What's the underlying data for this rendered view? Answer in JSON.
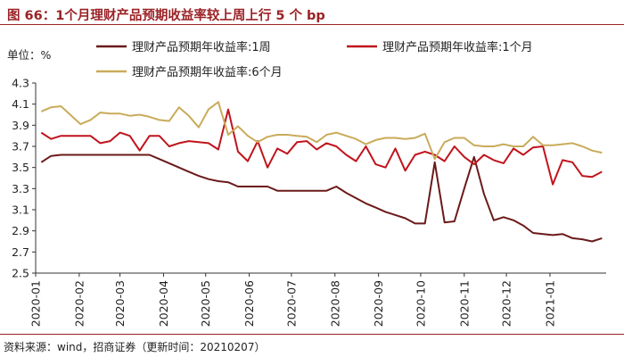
{
  "title": "图 66：1个月理财产品预期收益率较上周上行 5 个 bp",
  "source": "资料来源：wind，招商证券（更新时间：20210207）",
  "chart_data": {
    "type": "line",
    "unit_label": "单位：%",
    "ylim": [
      2.5,
      4.3
    ],
    "yticks": [
      "4.3",
      "4.1",
      "3.9",
      "3.7",
      "3.5",
      "3.3",
      "3.1",
      "2.9",
      "2.7",
      "2.5"
    ],
    "xticks": [
      "2020-01",
      "2020-02",
      "2020-03",
      "2020-04",
      "2020-05",
      "2020-06",
      "2020-07",
      "2020-08",
      "2020-09",
      "2020-10",
      "2020-11",
      "2020-12",
      "2021-01"
    ],
    "grid": false,
    "legend_position": "top",
    "x_dates": [
      "2020-01-05",
      "2020-01-12",
      "2020-01-19",
      "2020-02-02",
      "2020-02-09",
      "2020-02-16",
      "2020-02-23",
      "2020-03-01",
      "2020-03-08",
      "2020-03-15",
      "2020-03-22",
      "2020-03-29",
      "2020-04-05",
      "2020-04-12",
      "2020-04-19",
      "2020-04-26",
      "2020-05-03",
      "2020-05-10",
      "2020-05-17",
      "2020-05-24",
      "2020-05-31",
      "2020-06-07",
      "2020-06-14",
      "2020-06-21",
      "2020-06-28",
      "2020-07-05",
      "2020-07-12",
      "2020-07-19",
      "2020-07-26",
      "2020-08-02",
      "2020-08-09",
      "2020-08-16",
      "2020-08-23",
      "2020-08-30",
      "2020-09-06",
      "2020-09-13",
      "2020-09-20",
      "2020-09-27",
      "2020-10-04",
      "2020-10-11",
      "2020-10-18",
      "2020-10-25",
      "2020-11-01",
      "2020-11-08",
      "2020-11-15",
      "2020-11-22",
      "2020-11-29",
      "2020-12-06",
      "2020-12-13",
      "2020-12-20",
      "2020-12-27",
      "2021-01-03",
      "2021-01-10",
      "2021-01-17",
      "2021-01-24",
      "2021-01-31",
      "2021-02-07"
    ],
    "series": [
      {
        "name": "理财产品预期年收益率:1周",
        "color": "#6b1a1a",
        "values": [
          3.55,
          3.61,
          3.62,
          3.62,
          3.62,
          3.62,
          3.62,
          3.62,
          3.62,
          3.62,
          3.62,
          3.58,
          3.54,
          3.5,
          3.46,
          3.42,
          3.39,
          3.37,
          3.36,
          3.32,
          3.32,
          3.32,
          3.32,
          3.28,
          3.28,
          3.28,
          3.28,
          3.28,
          3.28,
          3.32,
          3.26,
          3.21,
          3.16,
          3.12,
          3.08,
          3.05,
          3.02,
          2.97,
          2.97,
          3.55,
          2.98,
          2.99,
          3.3,
          3.6,
          3.25,
          3.0,
          3.03,
          3.0,
          2.95,
          2.88,
          2.87,
          2.86,
          2.87,
          2.83,
          2.82,
          2.8,
          2.83
        ]
      },
      {
        "name": "理财产品预期年收益率:1个月",
        "color": "#c0141c",
        "values": [
          3.83,
          3.77,
          3.8,
          3.8,
          3.8,
          3.73,
          3.75,
          3.83,
          3.8,
          3.66,
          3.8,
          3.8,
          3.7,
          3.73,
          3.75,
          3.74,
          3.73,
          3.67,
          4.05,
          3.65,
          3.56,
          3.75,
          3.5,
          3.68,
          3.63,
          3.74,
          3.75,
          3.67,
          3.73,
          3.7,
          3.62,
          3.56,
          3.7,
          3.53,
          3.5,
          3.68,
          3.47,
          3.62,
          3.65,
          3.62,
          3.56,
          3.7,
          3.6,
          3.53,
          3.62,
          3.57,
          3.54,
          3.68,
          3.62,
          3.69,
          3.7,
          3.34,
          3.57,
          3.55,
          3.42,
          3.41,
          3.46
        ]
      },
      {
        "name": "理财产品预期年收益率:6个月",
        "color": "#c9ab5a",
        "values": [
          4.03,
          4.07,
          4.08,
          3.91,
          3.95,
          4.02,
          4.01,
          4.01,
          3.99,
          4.0,
          3.98,
          3.95,
          3.94,
          4.07,
          3.99,
          3.88,
          4.05,
          4.12,
          3.81,
          3.89,
          3.8,
          3.74,
          3.79,
          3.81,
          3.81,
          3.8,
          3.79,
          3.74,
          3.81,
          3.83,
          3.8,
          3.77,
          3.72,
          3.76,
          3.78,
          3.78,
          3.77,
          3.78,
          3.82,
          3.58,
          3.74,
          3.78,
          3.78,
          3.71,
          3.7,
          3.7,
          3.72,
          3.7,
          3.7,
          3.79,
          3.71,
          3.71,
          3.72,
          3.73,
          3.7,
          3.66,
          3.64
        ]
      }
    ]
  }
}
